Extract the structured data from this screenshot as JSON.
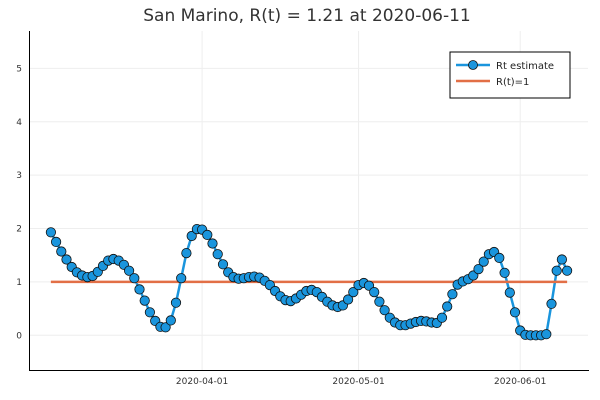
{
  "chart_data": {
    "type": "line",
    "title": "San Marino, R(t) = 1.21 at 2020-06-11",
    "xlabel": "",
    "ylabel": "",
    "x_start": "2020-03-03",
    "x_end": "2020-06-11",
    "xlim": [
      "2020-02-28",
      "2020-06-14"
    ],
    "ylim": [
      -0.65,
      5.7
    ],
    "x_ticks": [
      {
        "date": "2020-04-01",
        "label": "2020-04-01"
      },
      {
        "date": "2020-05-01",
        "label": "2020-05-01"
      },
      {
        "date": "2020-06-01",
        "label": "2020-06-01"
      }
    ],
    "y_ticks": [
      0,
      1,
      2,
      3,
      4,
      5
    ],
    "grid": true,
    "legend_position": "top-right",
    "series": [
      {
        "name": "Rt estimate",
        "color": "#1a95dd",
        "marker": "circle",
        "values": [
          1.93,
          1.75,
          1.57,
          1.42,
          1.28,
          1.18,
          1.12,
          1.09,
          1.11,
          1.19,
          1.3,
          1.4,
          1.43,
          1.4,
          1.32,
          1.21,
          1.07,
          0.86,
          0.65,
          0.43,
          0.27,
          0.16,
          0.15,
          0.28,
          0.61,
          1.07,
          1.54,
          1.86,
          1.99,
          1.98,
          1.88,
          1.72,
          1.52,
          1.33,
          1.18,
          1.09,
          1.06,
          1.07,
          1.09,
          1.1,
          1.08,
          1.02,
          0.94,
          0.83,
          0.73,
          0.66,
          0.64,
          0.69,
          0.76,
          0.83,
          0.85,
          0.81,
          0.72,
          0.63,
          0.56,
          0.53,
          0.56,
          0.67,
          0.81,
          0.94,
          0.98,
          0.93,
          0.81,
          0.63,
          0.47,
          0.33,
          0.24,
          0.19,
          0.19,
          0.22,
          0.25,
          0.27,
          0.26,
          0.24,
          0.23,
          0.33,
          0.54,
          0.77,
          0.95,
          1.01,
          1.05,
          1.12,
          1.24,
          1.38,
          1.52,
          1.56,
          1.45,
          1.17,
          0.8,
          0.43,
          0.09,
          0.01,
          0.0,
          0.0,
          0.0,
          0.02,
          0.59,
          1.21,
          1.42,
          1.21
        ]
      },
      {
        "name": "R(t)=1",
        "color": "#e26f46",
        "marker": "none",
        "value": 1
      }
    ]
  }
}
